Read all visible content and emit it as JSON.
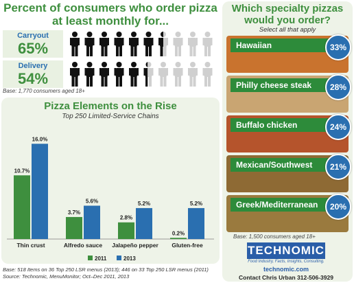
{
  "header": {
    "title": "Percent of consumers who order pizza at least monthly for..."
  },
  "stats": [
    {
      "label": "Carryout",
      "value": "65%",
      "filled": 6.5
    },
    {
      "label": "Delivery",
      "value": "54%",
      "filled": 5.4
    }
  ],
  "people_icon": "person-icon",
  "stats_base": "Base: 1,770 consumers aged 18+",
  "chart_panel": {
    "title": "Pizza Elements on the Rise",
    "subtitle": "Top 250 Limited-Service Chains",
    "footnote_lines": [
      "Base: 518 Items on 36 Top 250 LSR menus (2013); 446 on 33 Top 250 LSR menus (2011)",
      "Source: Technomic, MenuMonitor; Oct–Dec 2011, 2013"
    ]
  },
  "chart_data": {
    "type": "bar",
    "title": "Pizza Elements on the Rise",
    "subtitle": "Top 250 Limited-Service Chains",
    "categories": [
      "Thin crust",
      "Alfredo sauce",
      "Jalapeño pepper",
      "Gluten-free"
    ],
    "series": [
      {
        "name": "2011",
        "values": [
          10.7,
          3.7,
          2.8,
          0.2
        ],
        "labels": [
          "10.7%",
          "3.7%",
          "2.8%",
          "0.2%"
        ],
        "color": "#3e8f3e"
      },
      {
        "name": "2013",
        "values": [
          16.0,
          5.6,
          5.2,
          5.2
        ],
        "labels": [
          "16.0%",
          "5.6%",
          "5.2%",
          "5.2%"
        ],
        "color": "#2a6fb0"
      }
    ],
    "ylim": [
      0,
      18
    ],
    "grid": false,
    "legend": "bottom-right"
  },
  "specialty": {
    "title_line1": "Which specialty pizzas",
    "title_line2": "would you order?",
    "subtitle": "Select all that apply",
    "items": [
      {
        "label": "Hawaiian",
        "pct": "33%",
        "color": "#c9732e"
      },
      {
        "label": "Philly cheese steak",
        "pct": "28%",
        "color": "#c9a572"
      },
      {
        "label": "Buffalo chicken",
        "pct": "24%",
        "color": "#b5542c"
      },
      {
        "label": "Mexican/Southwest",
        "pct": "21%",
        "color": "#8e6a34"
      },
      {
        "label": "Greek/Mediterranean",
        "pct": "20%",
        "color": "#9a7a3e"
      }
    ],
    "base": "Base: 1,500 consumers aged 18+"
  },
  "brand": {
    "name": "TECHNOMIC",
    "tagline": "Food Industry, Facts, Insights, Consulting.",
    "url": "technomic.com",
    "contact": "Contact Chris Urban 312-506-3929"
  },
  "colors": {
    "green": "#3e8f3e",
    "blue": "#2a6fb0",
    "filled_person": "#111111",
    "empty_person": "#cfcfcf"
  }
}
